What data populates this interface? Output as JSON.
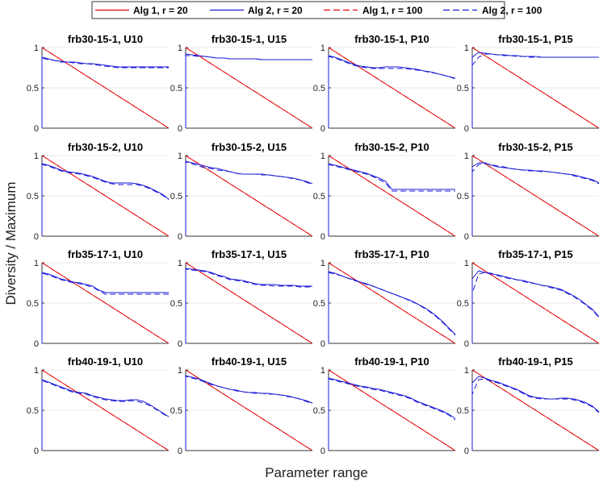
{
  "chart_data": {
    "type": "line",
    "xlabel": "Parameter range",
    "ylabel": "Diversity / Maximum",
    "ylim": [
      0,
      1
    ],
    "yticks": [
      0,
      0.5,
      1
    ],
    "ytick_labels": [
      "0",
      "0.5",
      "1"
    ],
    "grid": "horizontal",
    "legend_position": "top-center",
    "legend": [
      {
        "name": "Alg 1, r = 20",
        "color": "#e60000",
        "dash": "solid"
      },
      {
        "name": "Alg 2, r = 20",
        "color": "#1a1ad9",
        "dash": "solid"
      },
      {
        "name": "Alg 1, r = 100",
        "color": "#e60000",
        "dash": "dashed"
      },
      {
        "name": "Alg 2, r = 100",
        "color": "#1a1ad9",
        "dash": "dashed"
      }
    ],
    "x": [
      0,
      0.05,
      0.1,
      0.15,
      0.2,
      0.25,
      0.3,
      0.35,
      0.4,
      0.45,
      0.5,
      0.55,
      0.6,
      0.65,
      0.7,
      0.75,
      0.8,
      0.85,
      0.9,
      0.95,
      1
    ],
    "alg1": [
      1,
      0.95,
      0.9,
      0.85,
      0.8,
      0.75,
      0.7,
      0.65,
      0.6,
      0.55,
      0.5,
      0.45,
      0.4,
      0.35,
      0.3,
      0.25,
      0.2,
      0.15,
      0.1,
      0.05,
      0
    ],
    "panels": [
      {
        "title": "frb30-15-1, U10",
        "alg2_r20": [
          0.88,
          0.86,
          0.84,
          0.83,
          0.82,
          0.82,
          0.81,
          0.8,
          0.8,
          0.79,
          0.78,
          0.77,
          0.76,
          0.76,
          0.76,
          0.76,
          0.76,
          0.76,
          0.76,
          0.76,
          0.76
        ],
        "alg2_r100": [
          0.87,
          0.85,
          0.84,
          0.82,
          0.82,
          0.81,
          0.8,
          0.8,
          0.79,
          0.78,
          0.77,
          0.76,
          0.75,
          0.75,
          0.75,
          0.75,
          0.75,
          0.75,
          0.75,
          0.75,
          0.75
        ]
      },
      {
        "title": "frb30-15-1, U15",
        "alg2_r20": [
          0.92,
          0.91,
          0.9,
          0.89,
          0.88,
          0.87,
          0.87,
          0.86,
          0.86,
          0.86,
          0.86,
          0.86,
          0.85,
          0.85,
          0.85,
          0.85,
          0.85,
          0.85,
          0.85,
          0.85,
          0.85
        ],
        "alg2_r100": [
          0.9,
          0.9,
          0.89,
          0.89,
          0.88,
          0.87,
          0.87,
          0.86,
          0.86,
          0.86,
          0.86,
          0.86,
          0.85,
          0.85,
          0.85,
          0.85,
          0.85,
          0.85,
          0.85,
          0.85,
          0.85
        ]
      },
      {
        "title": "frb30-15-1, P10",
        "alg2_r20": [
          0.9,
          0.88,
          0.85,
          0.82,
          0.79,
          0.77,
          0.76,
          0.75,
          0.75,
          0.76,
          0.76,
          0.76,
          0.75,
          0.74,
          0.73,
          0.71,
          0.7,
          0.68,
          0.66,
          0.64,
          0.62
        ],
        "alg2_r100": [
          0.89,
          0.87,
          0.84,
          0.81,
          0.78,
          0.76,
          0.75,
          0.74,
          0.74,
          0.74,
          0.74,
          0.74,
          0.74,
          0.73,
          0.72,
          0.71,
          0.69,
          0.68,
          0.66,
          0.64,
          0.61
        ]
      },
      {
        "title": "frb30-15-1, P15",
        "alg2_r20": [
          0.88,
          0.94,
          0.93,
          0.92,
          0.91,
          0.91,
          0.9,
          0.9,
          0.89,
          0.89,
          0.89,
          0.88,
          0.88,
          0.88,
          0.88,
          0.88,
          0.88,
          0.88,
          0.88,
          0.88,
          0.88
        ],
        "alg2_r100": [
          0.78,
          0.88,
          0.92,
          0.92,
          0.91,
          0.9,
          0.9,
          0.89,
          0.89,
          0.88,
          0.88,
          0.88,
          0.88,
          0.88,
          0.88,
          0.88,
          0.88,
          0.88,
          0.88,
          0.88,
          0.88
        ]
      },
      {
        "title": "frb30-15-2, U10",
        "alg2_r20": [
          0.9,
          0.88,
          0.85,
          0.82,
          0.8,
          0.79,
          0.78,
          0.76,
          0.74,
          0.71,
          0.68,
          0.66,
          0.66,
          0.66,
          0.66,
          0.65,
          0.63,
          0.6,
          0.56,
          0.52,
          0.46
        ],
        "alg2_r100": [
          0.89,
          0.87,
          0.84,
          0.81,
          0.79,
          0.78,
          0.77,
          0.75,
          0.73,
          0.7,
          0.67,
          0.65,
          0.64,
          0.64,
          0.64,
          0.64,
          0.62,
          0.59,
          0.55,
          0.51,
          0.45
        ]
      },
      {
        "title": "frb30-15-2, U15",
        "alg2_r20": [
          0.93,
          0.91,
          0.89,
          0.87,
          0.85,
          0.84,
          0.82,
          0.8,
          0.78,
          0.77,
          0.77,
          0.77,
          0.77,
          0.76,
          0.75,
          0.74,
          0.73,
          0.72,
          0.7,
          0.68,
          0.65
        ],
        "alg2_r100": [
          0.92,
          0.9,
          0.87,
          0.85,
          0.84,
          0.82,
          0.81,
          0.8,
          0.78,
          0.77,
          0.77,
          0.77,
          0.76,
          0.76,
          0.75,
          0.74,
          0.73,
          0.71,
          0.7,
          0.67,
          0.64
        ]
      },
      {
        "title": "frb30-15-2, P10",
        "alg2_r20": [
          0.9,
          0.88,
          0.86,
          0.84,
          0.82,
          0.8,
          0.78,
          0.75,
          0.72,
          0.68,
          0.58,
          0.58,
          0.58,
          0.58,
          0.58,
          0.58,
          0.58,
          0.58,
          0.58,
          0.58,
          0.58
        ],
        "alg2_r100": [
          0.89,
          0.87,
          0.85,
          0.83,
          0.81,
          0.79,
          0.77,
          0.74,
          0.7,
          0.66,
          0.56,
          0.56,
          0.56,
          0.56,
          0.56,
          0.56,
          0.56,
          0.56,
          0.56,
          0.56,
          0.56
        ]
      },
      {
        "title": "frb30-15-2, P15",
        "alg2_r20": [
          0.86,
          0.91,
          0.91,
          0.88,
          0.86,
          0.85,
          0.84,
          0.83,
          0.82,
          0.82,
          0.81,
          0.81,
          0.8,
          0.79,
          0.78,
          0.77,
          0.76,
          0.74,
          0.72,
          0.7,
          0.66
        ],
        "alg2_r100": [
          0.8,
          0.89,
          0.9,
          0.89,
          0.87,
          0.86,
          0.84,
          0.83,
          0.82,
          0.81,
          0.81,
          0.8,
          0.8,
          0.79,
          0.78,
          0.77,
          0.75,
          0.73,
          0.71,
          0.69,
          0.65
        ]
      },
      {
        "title": "frb35-17-1, U10",
        "alg2_r20": [
          0.88,
          0.86,
          0.83,
          0.8,
          0.78,
          0.76,
          0.75,
          0.73,
          0.71,
          0.66,
          0.63,
          0.63,
          0.63,
          0.63,
          0.63,
          0.63,
          0.63,
          0.63,
          0.63,
          0.63,
          0.63
        ],
        "alg2_r100": [
          0.87,
          0.85,
          0.82,
          0.79,
          0.77,
          0.75,
          0.74,
          0.72,
          0.7,
          0.65,
          0.61,
          0.61,
          0.61,
          0.61,
          0.61,
          0.61,
          0.61,
          0.61,
          0.61,
          0.61,
          0.61
        ]
      },
      {
        "title": "frb35-17-1, U15",
        "alg2_r20": [
          0.93,
          0.92,
          0.91,
          0.9,
          0.88,
          0.85,
          0.83,
          0.8,
          0.79,
          0.78,
          0.76,
          0.74,
          0.73,
          0.73,
          0.73,
          0.72,
          0.72,
          0.72,
          0.71,
          0.71,
          0.71
        ],
        "alg2_r100": [
          0.92,
          0.91,
          0.9,
          0.89,
          0.87,
          0.84,
          0.82,
          0.79,
          0.78,
          0.77,
          0.75,
          0.73,
          0.72,
          0.72,
          0.71,
          0.71,
          0.71,
          0.71,
          0.7,
          0.7,
          0.7
        ]
      },
      {
        "title": "frb35-17-1, P10",
        "alg2_r20": [
          0.89,
          0.87,
          0.84,
          0.81,
          0.79,
          0.76,
          0.74,
          0.71,
          0.68,
          0.65,
          0.62,
          0.59,
          0.56,
          0.53,
          0.49,
          0.45,
          0.4,
          0.34,
          0.27,
          0.19,
          0.11
        ],
        "alg2_r100": [
          0.88,
          0.86,
          0.84,
          0.81,
          0.78,
          0.76,
          0.73,
          0.71,
          0.68,
          0.65,
          0.62,
          0.59,
          0.56,
          0.52,
          0.49,
          0.44,
          0.39,
          0.33,
          0.26,
          0.18,
          0.1
        ]
      },
      {
        "title": "frb35-17-1, P15",
        "alg2_r20": [
          0.8,
          0.9,
          0.88,
          0.86,
          0.85,
          0.83,
          0.81,
          0.79,
          0.78,
          0.76,
          0.74,
          0.72,
          0.71,
          0.69,
          0.67,
          0.63,
          0.59,
          0.54,
          0.48,
          0.42,
          0.33
        ],
        "alg2_r100": [
          0.62,
          0.86,
          0.88,
          0.87,
          0.84,
          0.82,
          0.8,
          0.79,
          0.77,
          0.75,
          0.74,
          0.72,
          0.7,
          0.68,
          0.66,
          0.62,
          0.58,
          0.53,
          0.47,
          0.41,
          0.32
        ]
      },
      {
        "title": "frb40-19-1, U10",
        "alg2_r20": [
          0.88,
          0.85,
          0.82,
          0.79,
          0.76,
          0.73,
          0.72,
          0.71,
          0.68,
          0.66,
          0.64,
          0.63,
          0.62,
          0.62,
          0.63,
          0.63,
          0.61,
          0.57,
          0.52,
          0.47,
          0.42
        ],
        "alg2_r100": [
          0.87,
          0.84,
          0.81,
          0.78,
          0.75,
          0.72,
          0.71,
          0.7,
          0.67,
          0.65,
          0.63,
          0.62,
          0.61,
          0.61,
          0.62,
          0.61,
          0.59,
          0.56,
          0.51,
          0.46,
          0.41
        ]
      },
      {
        "title": "frb40-19-1, U15",
        "alg2_r20": [
          0.93,
          0.91,
          0.89,
          0.86,
          0.83,
          0.8,
          0.78,
          0.76,
          0.75,
          0.73,
          0.72,
          0.72,
          0.71,
          0.71,
          0.7,
          0.69,
          0.68,
          0.66,
          0.64,
          0.62,
          0.59
        ],
        "alg2_r100": [
          0.92,
          0.9,
          0.88,
          0.85,
          0.82,
          0.8,
          0.78,
          0.76,
          0.74,
          0.73,
          0.72,
          0.71,
          0.71,
          0.7,
          0.7,
          0.69,
          0.67,
          0.66,
          0.64,
          0.61,
          0.58
        ]
      },
      {
        "title": "frb40-19-1, P10",
        "alg2_r20": [
          0.9,
          0.88,
          0.86,
          0.84,
          0.82,
          0.8,
          0.79,
          0.77,
          0.76,
          0.74,
          0.72,
          0.7,
          0.68,
          0.65,
          0.61,
          0.58,
          0.55,
          0.52,
          0.49,
          0.45,
          0.4
        ],
        "alg2_r100": [
          0.89,
          0.87,
          0.85,
          0.83,
          0.81,
          0.79,
          0.78,
          0.76,
          0.75,
          0.73,
          0.71,
          0.69,
          0.67,
          0.64,
          0.6,
          0.57,
          0.54,
          0.51,
          0.48,
          0.44,
          0.38
        ]
      },
      {
        "title": "frb40-19-1, P15",
        "alg2_r20": [
          0.84,
          0.92,
          0.9,
          0.87,
          0.85,
          0.82,
          0.79,
          0.76,
          0.72,
          0.68,
          0.66,
          0.65,
          0.64,
          0.64,
          0.65,
          0.65,
          0.64,
          0.62,
          0.59,
          0.55,
          0.48
        ],
        "alg2_r100": [
          0.7,
          0.88,
          0.89,
          0.86,
          0.84,
          0.81,
          0.78,
          0.75,
          0.71,
          0.67,
          0.65,
          0.64,
          0.64,
          0.64,
          0.64,
          0.64,
          0.63,
          0.61,
          0.58,
          0.54,
          0.47
        ]
      }
    ]
  }
}
